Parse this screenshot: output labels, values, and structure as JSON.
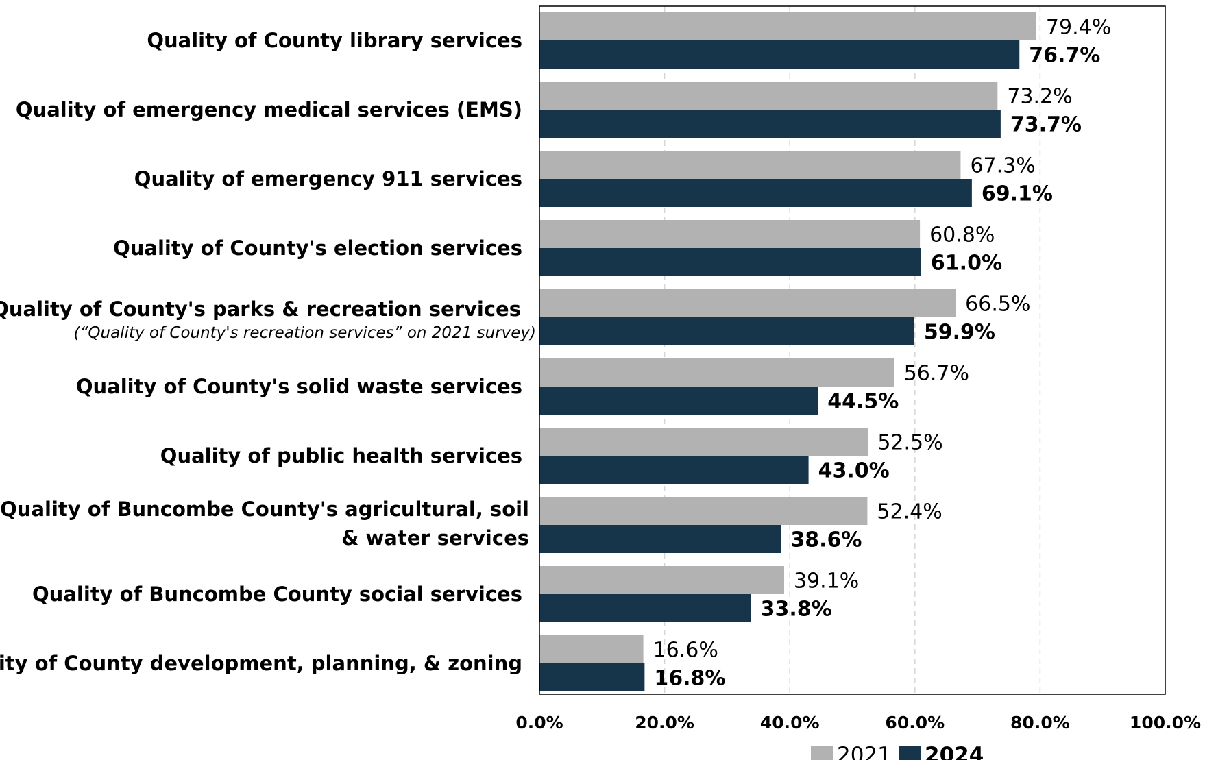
{
  "chart_data": {
    "type": "bar",
    "orientation": "horizontal",
    "categories": [
      {
        "label": "Quality of County library services",
        "note": ""
      },
      {
        "label": "Quality of emergency medical services (EMS)",
        "note": ""
      },
      {
        "label": "Quality of emergency 911 services",
        "note": ""
      },
      {
        "label": "Quality of County's election services",
        "note": ""
      },
      {
        "label": "Quality of County's parks & recreation services",
        "note": "(“Quality of County's recreation services” on 2021 survey)"
      },
      {
        "label": "Quality of County's solid waste services",
        "note": ""
      },
      {
        "label": "Quality of public health services",
        "note": ""
      },
      {
        "label": "Quality of Buncombe County's agricultural, soil\n& water services",
        "note": ""
      },
      {
        "label": "Quality of Buncombe County social services",
        "note": ""
      },
      {
        "label": "Quality of County development, planning, & zoning",
        "note": ""
      }
    ],
    "series": [
      {
        "name": "2021",
        "color": "#b2b2b2",
        "values": [
          79.4,
          73.2,
          67.3,
          60.8,
          66.5,
          56.7,
          52.5,
          52.4,
          39.1,
          16.6
        ],
        "labels": [
          "79.4%",
          "73.2%",
          "67.3%",
          "60.8%",
          "66.5%",
          "56.7%",
          "52.5%",
          "52.4%",
          "39.1%",
          "16.6%"
        ]
      },
      {
        "name": "2024",
        "color": "#17354a",
        "values": [
          76.7,
          73.7,
          69.1,
          61.0,
          59.9,
          44.5,
          43.0,
          38.6,
          33.8,
          16.8
        ],
        "labels": [
          "76.7%",
          "73.7%",
          "69.1%",
          "61.0%",
          "59.9%",
          "44.5%",
          "43.0%",
          "38.6%",
          "33.8%",
          "16.8%"
        ]
      }
    ],
    "xlim": [
      0,
      100
    ],
    "xticks": [
      0,
      20,
      40,
      60,
      80,
      100
    ],
    "xtick_labels": [
      "0.0%",
      "20.0%",
      "40.0%",
      "60.0%",
      "80.0%",
      "100.0%"
    ],
    "grid": "vertical-dashed",
    "legend": "bottom"
  }
}
